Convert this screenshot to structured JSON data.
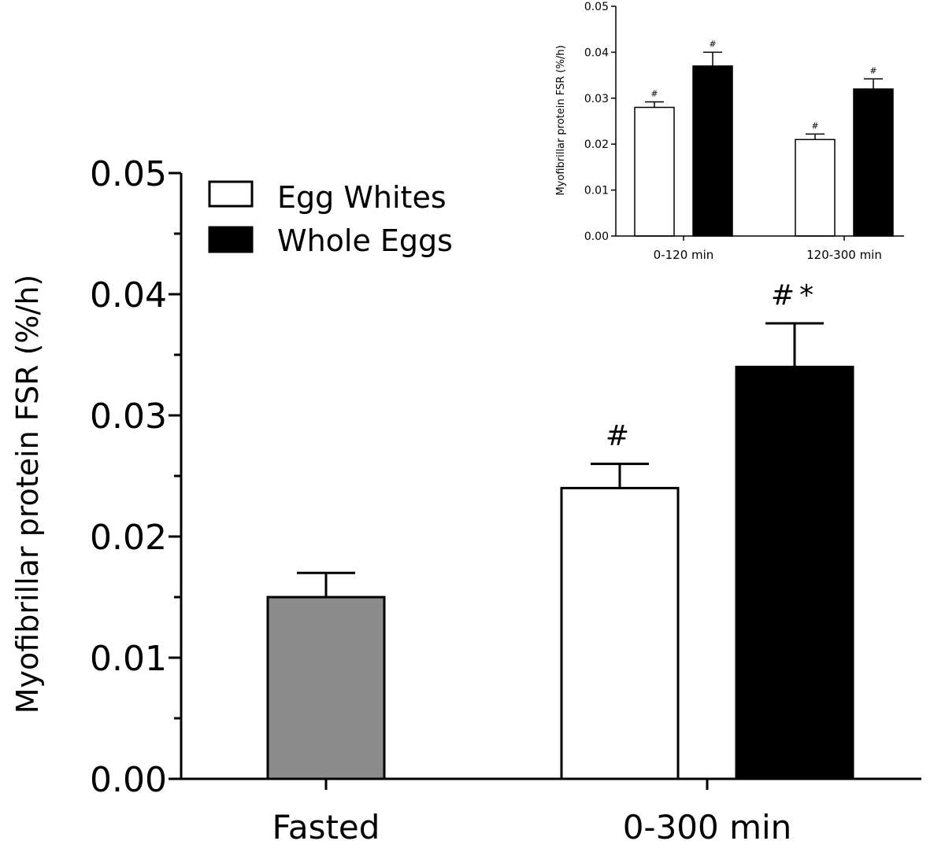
{
  "chart_data": [
    {
      "type": "bar",
      "name": "main",
      "ylabel": "Myofibrillar protein FSR (%/h)",
      "xlabel": "",
      "ylim": [
        0,
        0.05
      ],
      "yticks": [
        "0.00",
        "0.01",
        "0.02",
        "0.03",
        "0.04",
        "0.05"
      ],
      "categories": [
        "Fasted",
        "0-300 min"
      ],
      "legend": [
        {
          "label": "Egg Whites",
          "fill": "#ffffff"
        },
        {
          "label": "Whole Eggs",
          "fill": "#000000"
        }
      ],
      "legend_position": "top-left",
      "bars": [
        {
          "category": "Fasted",
          "series": "Fasted",
          "value": 0.015,
          "error": 0.002,
          "fill": "#8c8c8c",
          "annotation": ""
        },
        {
          "category": "0-300 min",
          "series": "Egg Whites",
          "value": 0.024,
          "error": 0.002,
          "fill": "#ffffff",
          "annotation": "#"
        },
        {
          "category": "0-300 min",
          "series": "Whole Eggs",
          "value": 0.034,
          "error": 0.0036,
          "fill": "#000000",
          "annotation": "#*"
        }
      ]
    },
    {
      "type": "bar",
      "name": "inset",
      "ylabel": "Myofibrillar protein FSR (%/h)",
      "xlabel": "",
      "ylim": [
        0,
        0.05
      ],
      "yticks": [
        "0.00",
        "0.01",
        "0.02",
        "0.03",
        "0.04",
        "0.05"
      ],
      "categories": [
        "0-120 min",
        "120-300 min"
      ],
      "series": [
        {
          "name": "Egg Whites",
          "fill": "#ffffff",
          "values": [
            0.028,
            0.021
          ],
          "errors": [
            0.0012,
            0.0012
          ],
          "annotations": [
            "#",
            "#"
          ]
        },
        {
          "name": "Whole Eggs",
          "fill": "#000000",
          "values": [
            0.037,
            0.032
          ],
          "errors": [
            0.003,
            0.0022
          ],
          "annotations": [
            "#",
            "#"
          ]
        }
      ]
    }
  ]
}
